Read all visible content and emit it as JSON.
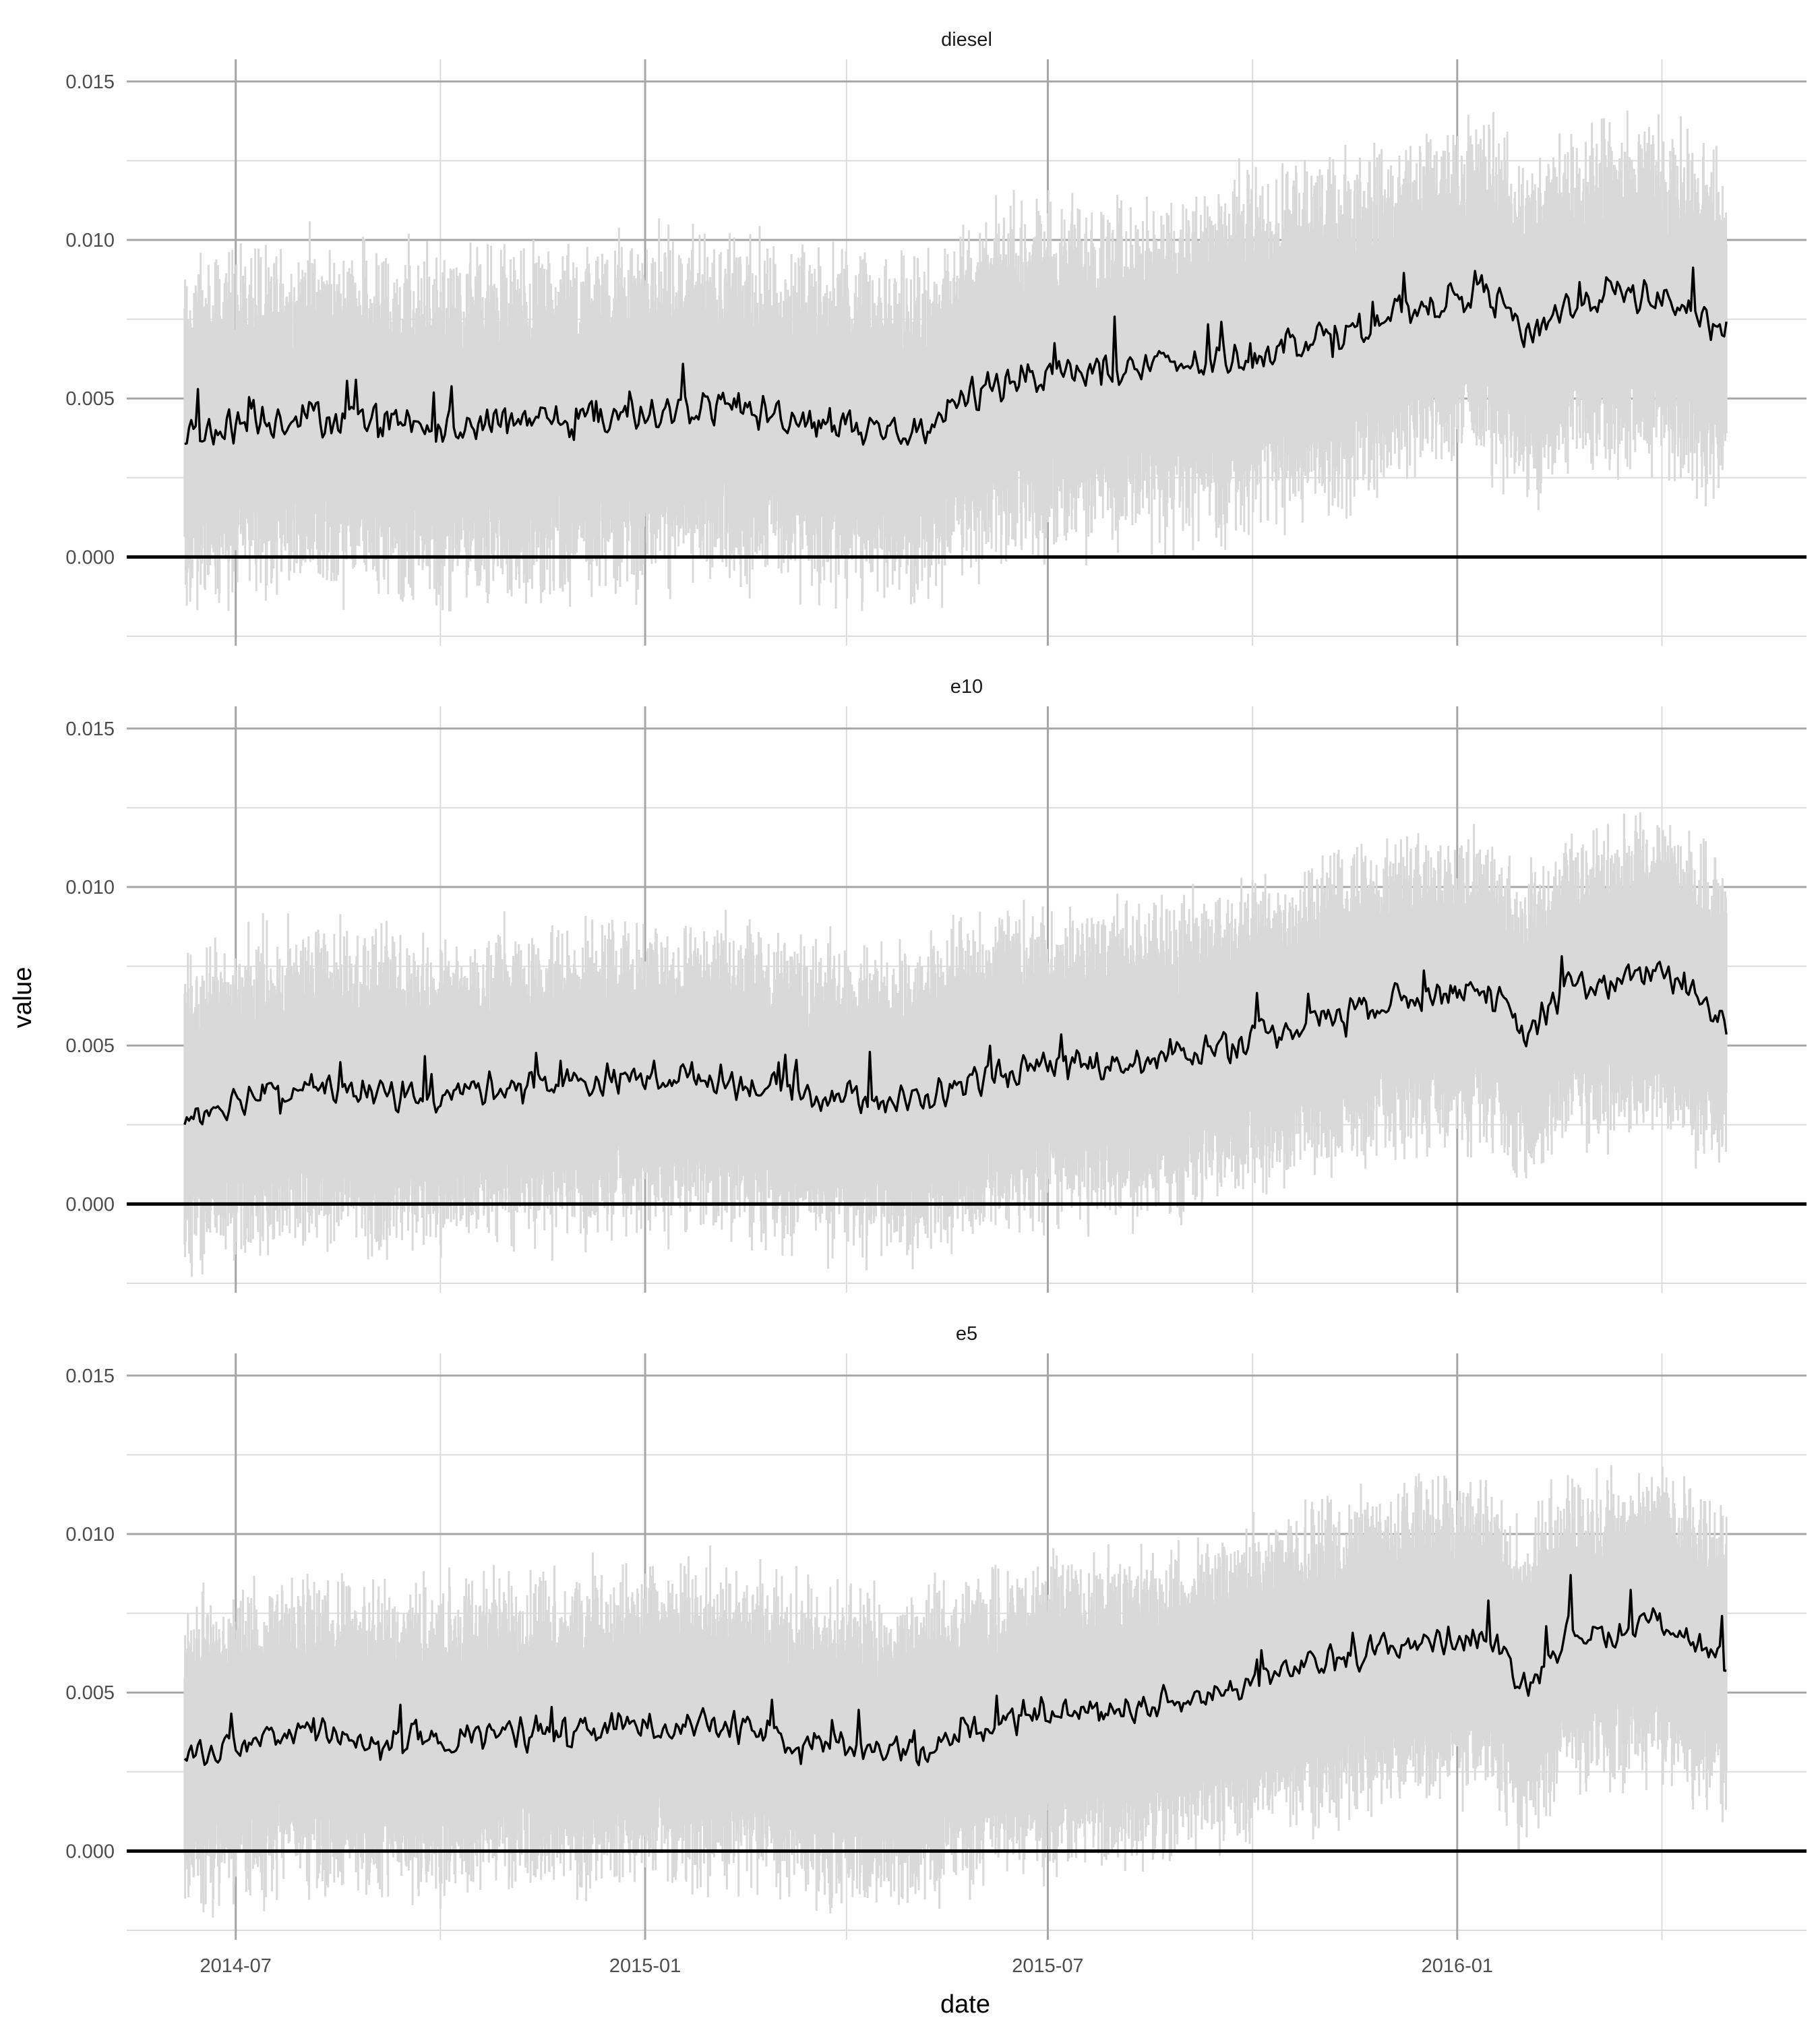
{
  "chart_data": {
    "type": "line",
    "layout": "faceted, vertically stacked panels sharing x axis",
    "xlabel": "date",
    "ylabel": "value",
    "x_tick_labels": [
      "2014-07",
      "2015-01",
      "2015-07",
      "2016-01"
    ],
    "x_ticks": [
      "2014-07-01",
      "2015-01-01",
      "2015-07-01",
      "2016-01-01"
    ],
    "x_range": [
      "2014-05-13",
      "2016-06-06"
    ],
    "data_range": [
      "2014-06-08",
      "2016-05-01"
    ],
    "y_tick_labels": [
      "0.000",
      "0.005",
      "0.010",
      "0.015"
    ],
    "y_ticks": [
      0,
      0.005,
      0.01,
      0.015
    ],
    "ylim": [
      -0.0028,
      0.0157
    ],
    "grid": true,
    "zero_line": true,
    "band_color": "#d9d9d9",
    "line_color": "#000000",
    "series_shown_as": "black line = daily mean, light grey = min–max range of underlying values",
    "panels": [
      {
        "name": "diesel",
        "anchors": [
          [
            "2014-06-08",
            0.0038
          ],
          [
            "2014-07-01",
            0.0042
          ],
          [
            "2014-08-01",
            0.0045
          ],
          [
            "2014-09-01",
            0.0042
          ],
          [
            "2014-10-01",
            0.004
          ],
          [
            "2014-11-01",
            0.0043
          ],
          [
            "2014-12-01",
            0.0043
          ],
          [
            "2015-01-01",
            0.0046
          ],
          [
            "2015-02-01",
            0.0047
          ],
          [
            "2015-03-01",
            0.0045
          ],
          [
            "2015-04-01",
            0.0042
          ],
          [
            "2015-05-01",
            0.0039
          ],
          [
            "2015-05-25",
            0.005
          ],
          [
            "2015-06-15",
            0.0057
          ],
          [
            "2015-07-15",
            0.0058
          ],
          [
            "2015-08-15",
            0.006
          ],
          [
            "2015-09-15",
            0.0062
          ],
          [
            "2015-10-15",
            0.0067
          ],
          [
            "2015-11-15",
            0.0072
          ],
          [
            "2015-12-15",
            0.0079
          ],
          [
            "2016-01-15",
            0.0085
          ],
          [
            "2016-02-01",
            0.007
          ],
          [
            "2016-02-20",
            0.008
          ],
          [
            "2016-03-10",
            0.0083
          ],
          [
            "2016-04-01",
            0.0082
          ],
          [
            "2016-05-01",
            0.0072
          ]
        ],
        "noise": 0.0007,
        "band_half_width": [
          0.0025,
          0.005
        ]
      },
      {
        "name": "e10",
        "anchors": [
          [
            "2014-06-08",
            0.0028
          ],
          [
            "2014-07-01",
            0.0033
          ],
          [
            "2014-08-01",
            0.0038
          ],
          [
            "2014-09-01",
            0.0035
          ],
          [
            "2014-10-01",
            0.0034
          ],
          [
            "2014-11-01",
            0.0038
          ],
          [
            "2014-12-01",
            0.0038
          ],
          [
            "2015-01-01",
            0.004
          ],
          [
            "2015-02-01",
            0.004
          ],
          [
            "2015-03-01",
            0.0036
          ],
          [
            "2015-04-01",
            0.0034
          ],
          [
            "2015-05-01",
            0.0032
          ],
          [
            "2015-06-01",
            0.004
          ],
          [
            "2015-07-01",
            0.0043
          ],
          [
            "2015-08-15",
            0.0045
          ],
          [
            "2015-09-15",
            0.005
          ],
          [
            "2015-10-15",
            0.0055
          ],
          [
            "2015-11-15",
            0.0062
          ],
          [
            "2015-12-15",
            0.0066
          ],
          [
            "2016-01-15",
            0.0068
          ],
          [
            "2016-02-01",
            0.0052
          ],
          [
            "2016-02-20",
            0.007
          ],
          [
            "2016-03-10",
            0.0068
          ],
          [
            "2016-04-01",
            0.0075
          ],
          [
            "2016-05-01",
            0.0058
          ]
        ],
        "noise": 0.0006,
        "band_half_width": [
          0.0025,
          0.0045
        ]
      },
      {
        "name": "e5",
        "anchors": [
          [
            "2014-06-08",
            0.003
          ],
          [
            "2014-07-01",
            0.0033
          ],
          [
            "2014-08-01",
            0.0038
          ],
          [
            "2014-09-01",
            0.0035
          ],
          [
            "2014-10-01",
            0.0034
          ],
          [
            "2014-11-01",
            0.0038
          ],
          [
            "2014-12-01",
            0.0037
          ],
          [
            "2015-01-01",
            0.004
          ],
          [
            "2015-02-01",
            0.004
          ],
          [
            "2015-03-01",
            0.0036
          ],
          [
            "2015-04-01",
            0.0034
          ],
          [
            "2015-05-01",
            0.0031
          ],
          [
            "2015-06-01",
            0.004
          ],
          [
            "2015-07-01",
            0.0043
          ],
          [
            "2015-08-15",
            0.0046
          ],
          [
            "2015-09-15",
            0.005
          ],
          [
            "2015-10-15",
            0.0056
          ],
          [
            "2015-11-15",
            0.0062
          ],
          [
            "2015-12-15",
            0.0066
          ],
          [
            "2016-01-15",
            0.0068
          ],
          [
            "2016-02-01",
            0.0052
          ],
          [
            "2016-02-20",
            0.007
          ],
          [
            "2016-03-10",
            0.0068
          ],
          [
            "2016-04-01",
            0.0074
          ],
          [
            "2016-05-01",
            0.0058
          ]
        ],
        "noise": 0.0006,
        "band_half_width": [
          0.0025,
          0.0045
        ]
      }
    ]
  }
}
